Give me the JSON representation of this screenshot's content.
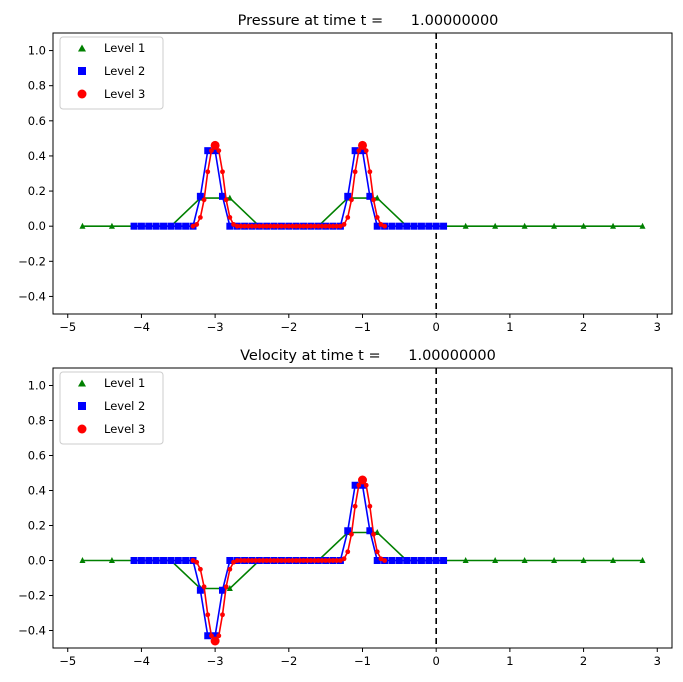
{
  "chart_data": [
    {
      "type": "line",
      "title": "Pressure at time t =      1.00000000",
      "xlabel": "",
      "ylabel": "",
      "xlim": [
        -5.2,
        3.2
      ],
      "ylim": [
        -0.5,
        1.1
      ],
      "xticks": [
        -5,
        -4,
        -3,
        -2,
        -1,
        0,
        1,
        2,
        3
      ],
      "xtick_labels": [
        "−5",
        "−4",
        "−3",
        "−2",
        "−1",
        "0",
        "1",
        "2",
        "3"
      ],
      "yticks": [
        -0.4,
        -0.2,
        0.0,
        0.2,
        0.4,
        0.6,
        0.8,
        1.0
      ],
      "ytick_labels": [
        "−0.4",
        "−0.2",
        "0.0",
        "0.2",
        "0.4",
        "0.6",
        "0.8",
        "1.0"
      ],
      "vline_x": 0,
      "legend": {
        "position": "top-left",
        "entries": [
          "Level 1",
          "Level 2",
          "Level 3"
        ]
      },
      "series": [
        {
          "name": "Level 1",
          "marker": "triangle",
          "color": "#008000",
          "x": [
            -4.8,
            -4.4,
            -4.0,
            -3.6,
            -3.2,
            -2.8,
            -2.4,
            -2.0,
            -1.6,
            -1.2,
            -0.8,
            -0.4,
            0.0,
            0.4,
            0.8,
            1.2,
            1.6,
            2.0,
            2.4,
            2.8
          ],
          "y": [
            0,
            0,
            0,
            0,
            0.16,
            0.16,
            0,
            0,
            0,
            0.16,
            0.16,
            0,
            0,
            0,
            0,
            0,
            0,
            0,
            0,
            0
          ]
        },
        {
          "name": "Level 2",
          "marker": "square",
          "color": "#0000ff",
          "x": [
            -4.1,
            -4.0,
            -3.9,
            -3.8,
            -3.7,
            -3.6,
            -3.5,
            -3.4,
            -3.3,
            -3.2,
            -3.1,
            -3.0,
            -2.9,
            -2.8,
            -2.7,
            -2.6,
            -2.5,
            -2.4,
            -2.3,
            -2.2,
            -2.1,
            -2.0,
            -1.9,
            -1.8,
            -1.7,
            -1.6,
            -1.5,
            -1.4,
            -1.3,
            -1.2,
            -1.1,
            -1.0,
            -0.9,
            -0.8,
            -0.7,
            -0.6,
            -0.5,
            -0.4,
            -0.3,
            -0.2,
            -0.1,
            0.0,
            0.1
          ],
          "y": [
            0,
            0,
            0,
            0,
            0,
            0,
            0,
            0,
            0,
            0.17,
            0.43,
            0.43,
            0.17,
            0,
            0,
            0,
            0,
            0,
            0,
            0,
            0,
            0,
            0,
            0,
            0,
            0,
            0,
            0,
            0,
            0.17,
            0.43,
            0.43,
            0.17,
            0,
            0,
            0,
            0,
            0,
            0,
            0,
            0,
            0,
            0
          ]
        },
        {
          "name": "Level 3",
          "marker": "circle",
          "color": "#ff0000",
          "x": [
            -3.3,
            -3.25,
            -3.2,
            -3.15,
            -3.1,
            -3.05,
            -3.0,
            -2.95,
            -2.9,
            -2.85,
            -2.8,
            -2.75,
            -2.7,
            -2.65,
            -2.6,
            -2.55,
            -2.5,
            -2.45,
            -2.4,
            -2.35,
            -2.3,
            -2.25,
            -2.2,
            -2.15,
            -2.1,
            -2.05,
            -2.0,
            -1.95,
            -1.9,
            -1.85,
            -1.8,
            -1.75,
            -1.7,
            -1.65,
            -1.6,
            -1.55,
            -1.5,
            -1.45,
            -1.4,
            -1.35,
            -1.3,
            -1.25,
            -1.2,
            -1.15,
            -1.1,
            -1.05,
            -1.0,
            -0.95,
            -0.9,
            -0.85,
            -0.8,
            -0.75,
            -0.7
          ],
          "y": [
            0,
            0.01,
            0.05,
            0.15,
            0.31,
            0.43,
            0.46,
            0.43,
            0.31,
            0.15,
            0.05,
            0.01,
            0,
            0,
            0,
            0,
            0,
            0,
            0,
            0,
            0,
            0,
            0,
            0,
            0,
            0,
            0,
            0,
            0,
            0,
            0,
            0,
            0,
            0,
            0,
            0,
            0,
            0,
            0,
            0,
            0,
            0.01,
            0.05,
            0.15,
            0.31,
            0.43,
            0.46,
            0.43,
            0.31,
            0.15,
            0.05,
            0.01,
            0
          ]
        }
      ]
    },
    {
      "type": "line",
      "title": "Velocity at time t =      1.00000000",
      "xlabel": "",
      "ylabel": "",
      "xlim": [
        -5.2,
        3.2
      ],
      "ylim": [
        -0.5,
        1.1
      ],
      "xticks": [
        -5,
        -4,
        -3,
        -2,
        -1,
        0,
        1,
        2,
        3
      ],
      "xtick_labels": [
        "−5",
        "−4",
        "−3",
        "−2",
        "−1",
        "0",
        "1",
        "2",
        "3"
      ],
      "yticks": [
        -0.4,
        -0.2,
        0.0,
        0.2,
        0.4,
        0.6,
        0.8,
        1.0
      ],
      "ytick_labels": [
        "−0.4",
        "−0.2",
        "0.0",
        "0.2",
        "0.4",
        "0.6",
        "0.8",
        "1.0"
      ],
      "vline_x": 0,
      "legend": {
        "position": "top-left",
        "entries": [
          "Level 1",
          "Level 2",
          "Level 3"
        ]
      },
      "series": [
        {
          "name": "Level 1",
          "marker": "triangle",
          "color": "#008000",
          "x": [
            -4.8,
            -4.4,
            -4.0,
            -3.6,
            -3.2,
            -2.8,
            -2.4,
            -2.0,
            -1.6,
            -1.2,
            -0.8,
            -0.4,
            0.0,
            0.4,
            0.8,
            1.2,
            1.6,
            2.0,
            2.4,
            2.8
          ],
          "y": [
            0,
            0,
            0,
            0,
            -0.16,
            -0.16,
            0,
            0,
            0,
            0.16,
            0.16,
            0,
            0,
            0,
            0,
            0,
            0,
            0,
            0,
            0
          ]
        },
        {
          "name": "Level 2",
          "marker": "square",
          "color": "#0000ff",
          "x": [
            -4.1,
            -4.0,
            -3.9,
            -3.8,
            -3.7,
            -3.6,
            -3.5,
            -3.4,
            -3.3,
            -3.2,
            -3.1,
            -3.0,
            -2.9,
            -2.8,
            -2.7,
            -2.6,
            -2.5,
            -2.4,
            -2.3,
            -2.2,
            -2.1,
            -2.0,
            -1.9,
            -1.8,
            -1.7,
            -1.6,
            -1.5,
            -1.4,
            -1.3,
            -1.2,
            -1.1,
            -1.0,
            -0.9,
            -0.8,
            -0.7,
            -0.6,
            -0.5,
            -0.4,
            -0.3,
            -0.2,
            -0.1,
            0.0,
            0.1
          ],
          "y": [
            0,
            0,
            0,
            0,
            0,
            0,
            0,
            0,
            0,
            -0.17,
            -0.43,
            -0.43,
            -0.17,
            0,
            0,
            0,
            0,
            0,
            0,
            0,
            0,
            0,
            0,
            0,
            0,
            0,
            0,
            0,
            0,
            0.17,
            0.43,
            0.43,
            0.17,
            0,
            0,
            0,
            0,
            0,
            0,
            0,
            0,
            0,
            0
          ]
        },
        {
          "name": "Level 3",
          "marker": "circle",
          "color": "#ff0000",
          "x": [
            -3.3,
            -3.25,
            -3.2,
            -3.15,
            -3.1,
            -3.05,
            -3.0,
            -2.95,
            -2.9,
            -2.85,
            -2.8,
            -2.75,
            -2.7,
            -2.65,
            -2.6,
            -2.55,
            -2.5,
            -2.45,
            -2.4,
            -2.35,
            -2.3,
            -2.25,
            -2.2,
            -2.15,
            -2.1,
            -2.05,
            -2.0,
            -1.95,
            -1.9,
            -1.85,
            -1.8,
            -1.75,
            -1.7,
            -1.65,
            -1.6,
            -1.55,
            -1.5,
            -1.45,
            -1.4,
            -1.35,
            -1.3,
            -1.25,
            -1.2,
            -1.15,
            -1.1,
            -1.05,
            -1.0,
            -0.95,
            -0.9,
            -0.85,
            -0.8,
            -0.75,
            -0.7
          ],
          "y": [
            0,
            -0.01,
            -0.05,
            -0.15,
            -0.31,
            -0.43,
            -0.46,
            -0.43,
            -0.31,
            -0.15,
            -0.05,
            -0.01,
            0,
            0,
            0,
            0,
            0,
            0,
            0,
            0,
            0,
            0,
            0,
            0,
            0,
            0,
            0,
            0,
            0,
            0,
            0,
            0,
            0,
            0,
            0,
            0,
            0,
            0,
            0,
            0,
            0,
            0.01,
            0.05,
            0.15,
            0.31,
            0.43,
            0.46,
            0.43,
            0.31,
            0.15,
            0.05,
            0.01,
            0
          ]
        }
      ]
    }
  ]
}
